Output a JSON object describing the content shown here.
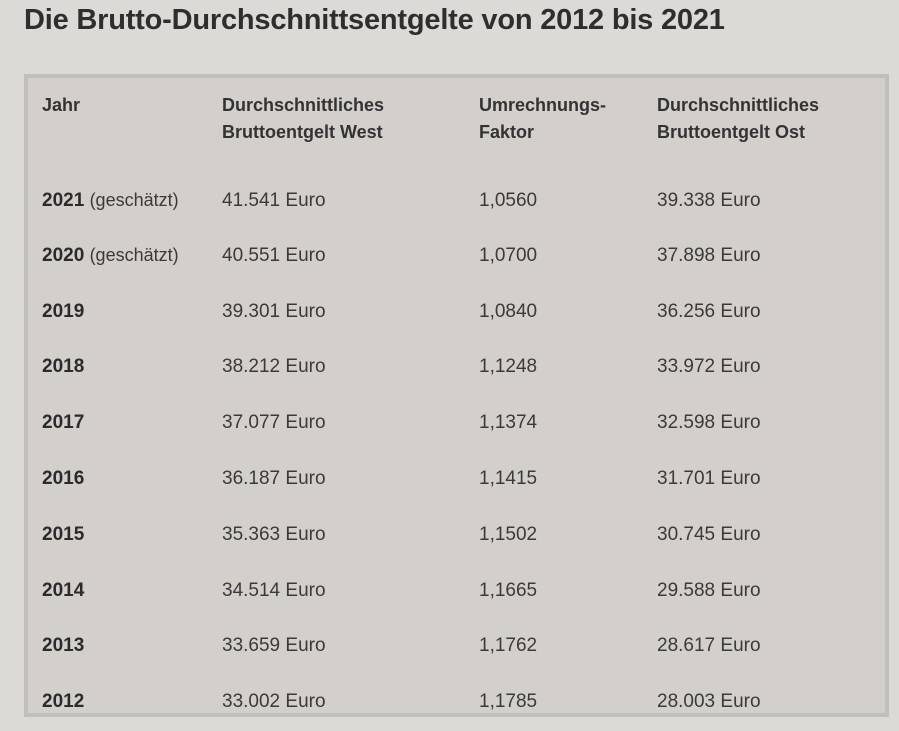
{
  "title": "Die Brutto-Durchschnittsentgelte von 2012 bis 2021",
  "table": {
    "headers": {
      "year": "Jahr",
      "west_line1": "Durchschnittliches",
      "west_line2": "Bruttoentgelt West",
      "factor_line1": "Umrechnungs-",
      "factor_line2": "Faktor",
      "east_line1": "Durchschnittliches",
      "east_line2": "Bruttoentgelt Ost"
    },
    "rows": [
      {
        "year": "2021",
        "note": "(geschätzt)",
        "west": "41.541 Euro",
        "factor": "1,0560",
        "east": "39.338 Euro"
      },
      {
        "year": "2020",
        "note": "(geschätzt)",
        "west": "40.551 Euro",
        "factor": "1,0700",
        "east": "37.898 Euro"
      },
      {
        "year": "2019",
        "note": "",
        "west": "39.301 Euro",
        "factor": "1,0840",
        "east": "36.256 Euro"
      },
      {
        "year": "2018",
        "note": "",
        "west": "38.212 Euro",
        "factor": "1,1248",
        "east": "33.972 Euro"
      },
      {
        "year": "2017",
        "note": "",
        "west": "37.077 Euro",
        "factor": "1,1374",
        "east": "32.598 Euro"
      },
      {
        "year": "2016",
        "note": "",
        "west": "36.187 Euro",
        "factor": "1,1415",
        "east": "31.701 Euro"
      },
      {
        "year": "2015",
        "note": "",
        "west": "35.363 Euro",
        "factor": "1,1502",
        "east": "30.745 Euro"
      },
      {
        "year": "2014",
        "note": "",
        "west": "34.514 Euro",
        "factor": "1,1665",
        "east": "29.588 Euro"
      },
      {
        "year": "2013",
        "note": "",
        "west": "33.659 Euro",
        "factor": "1,1762",
        "east": "28.617 Euro"
      },
      {
        "year": "2012",
        "note": "",
        "west": "33.002 Euro",
        "factor": "1,1785",
        "east": "28.003 Euro"
      }
    ]
  },
  "colors": {
    "page_background": "#dcdad6",
    "table_background": "#d3d0cc",
    "table_border": "#c2bfbb",
    "text": "#2b2b2b"
  }
}
